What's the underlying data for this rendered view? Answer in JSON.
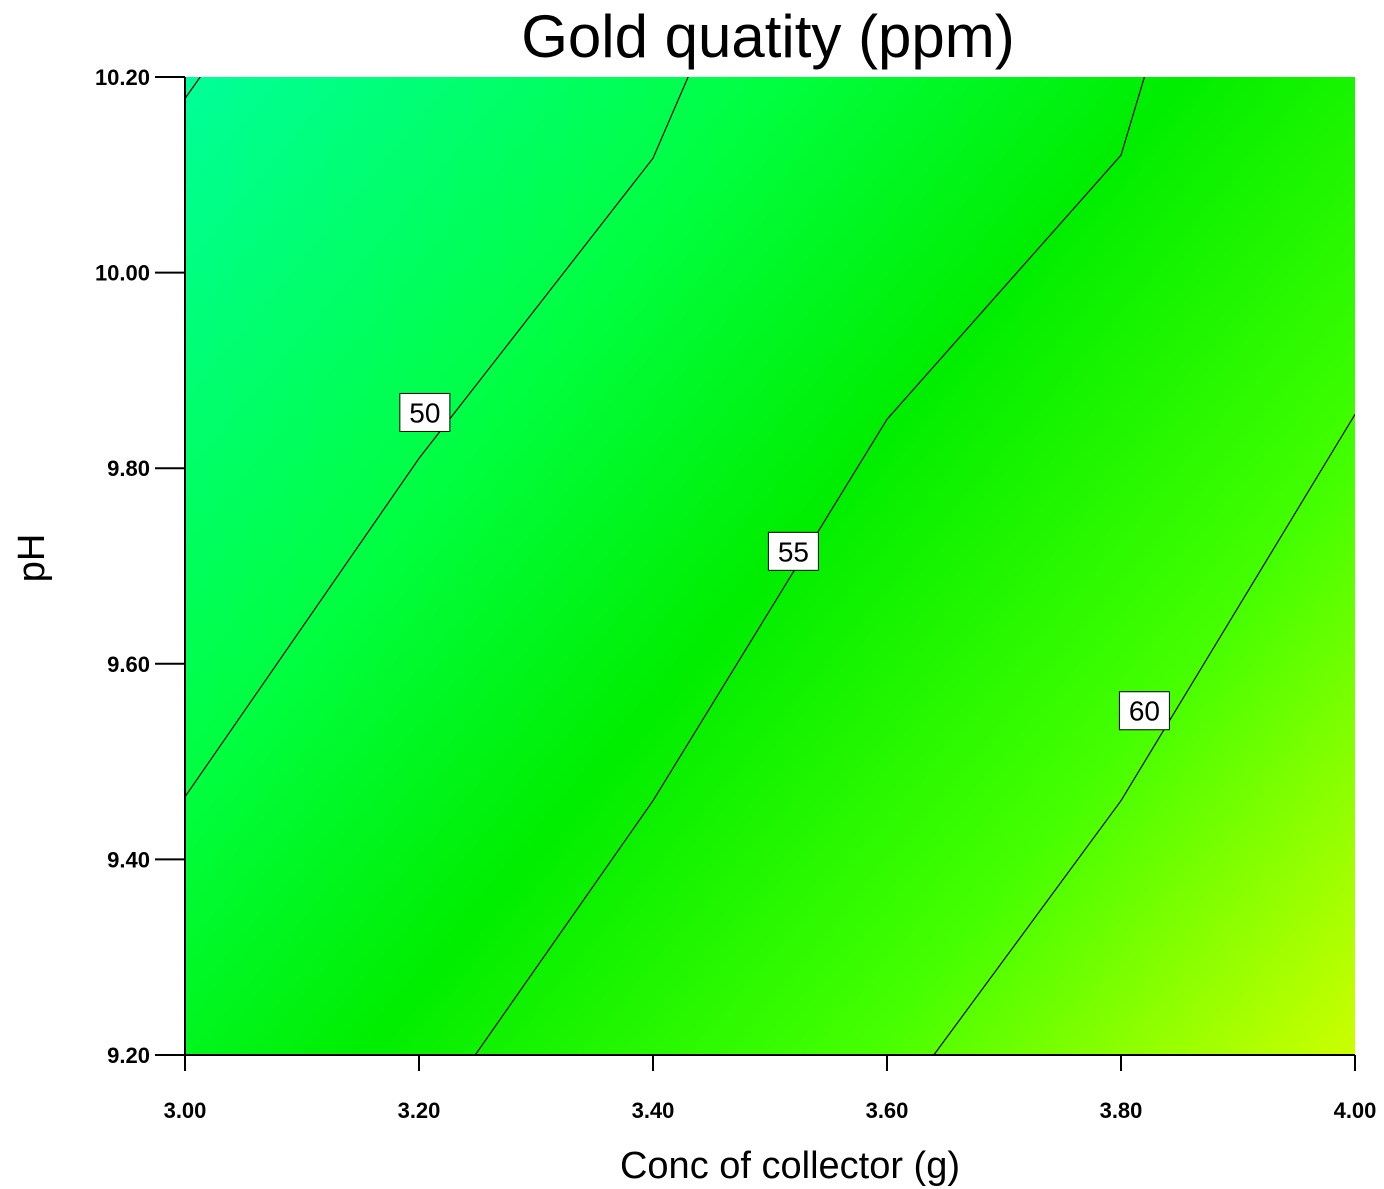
{
  "chart_data": {
    "type": "contour",
    "title": "Gold quatity (ppm)",
    "xlabel": "Conc of collector (g)",
    "ylabel": "pH",
    "xlim": [
      3.0,
      4.0
    ],
    "ylim": [
      9.2,
      10.2
    ],
    "x_ticks": [
      "3.00",
      "3.20",
      "3.40",
      "3.60",
      "3.80",
      "4.00"
    ],
    "y_ticks": [
      "9.20",
      "9.40",
      "9.60",
      "9.80",
      "10.00",
      "10.20"
    ],
    "grid": false,
    "colors": {
      "low": "#00ff99",
      "mid": "#00ee00",
      "high": "#ccff00",
      "line": "#000000"
    },
    "contours": [
      {
        "level": "50",
        "points": [
          [
            3.0,
            9.464
          ],
          [
            3.2,
            9.81
          ],
          [
            3.4,
            10.117
          ],
          [
            3.43,
            10.2
          ]
        ],
        "label_at": [
          3.205,
          9.857
        ]
      },
      {
        "level": "55",
        "points": [
          [
            3.248,
            9.2
          ],
          [
            3.4,
            9.46
          ],
          [
            3.6,
            9.85
          ],
          [
            3.8,
            10.12
          ],
          [
            3.82,
            10.2
          ]
        ],
        "label_at": [
          3.52,
          9.715
        ]
      },
      {
        "level": "60",
        "points": [
          [
            3.64,
            9.2
          ],
          [
            3.8,
            9.46
          ],
          [
            4.0,
            9.855
          ]
        ],
        "label_at": [
          3.82,
          9.552
        ]
      }
    ],
    "corner_edge_contour": {
      "level": "",
      "points": [
        [
          3.0,
          10.178
        ],
        [
          3.013,
          10.2
        ]
      ]
    }
  }
}
